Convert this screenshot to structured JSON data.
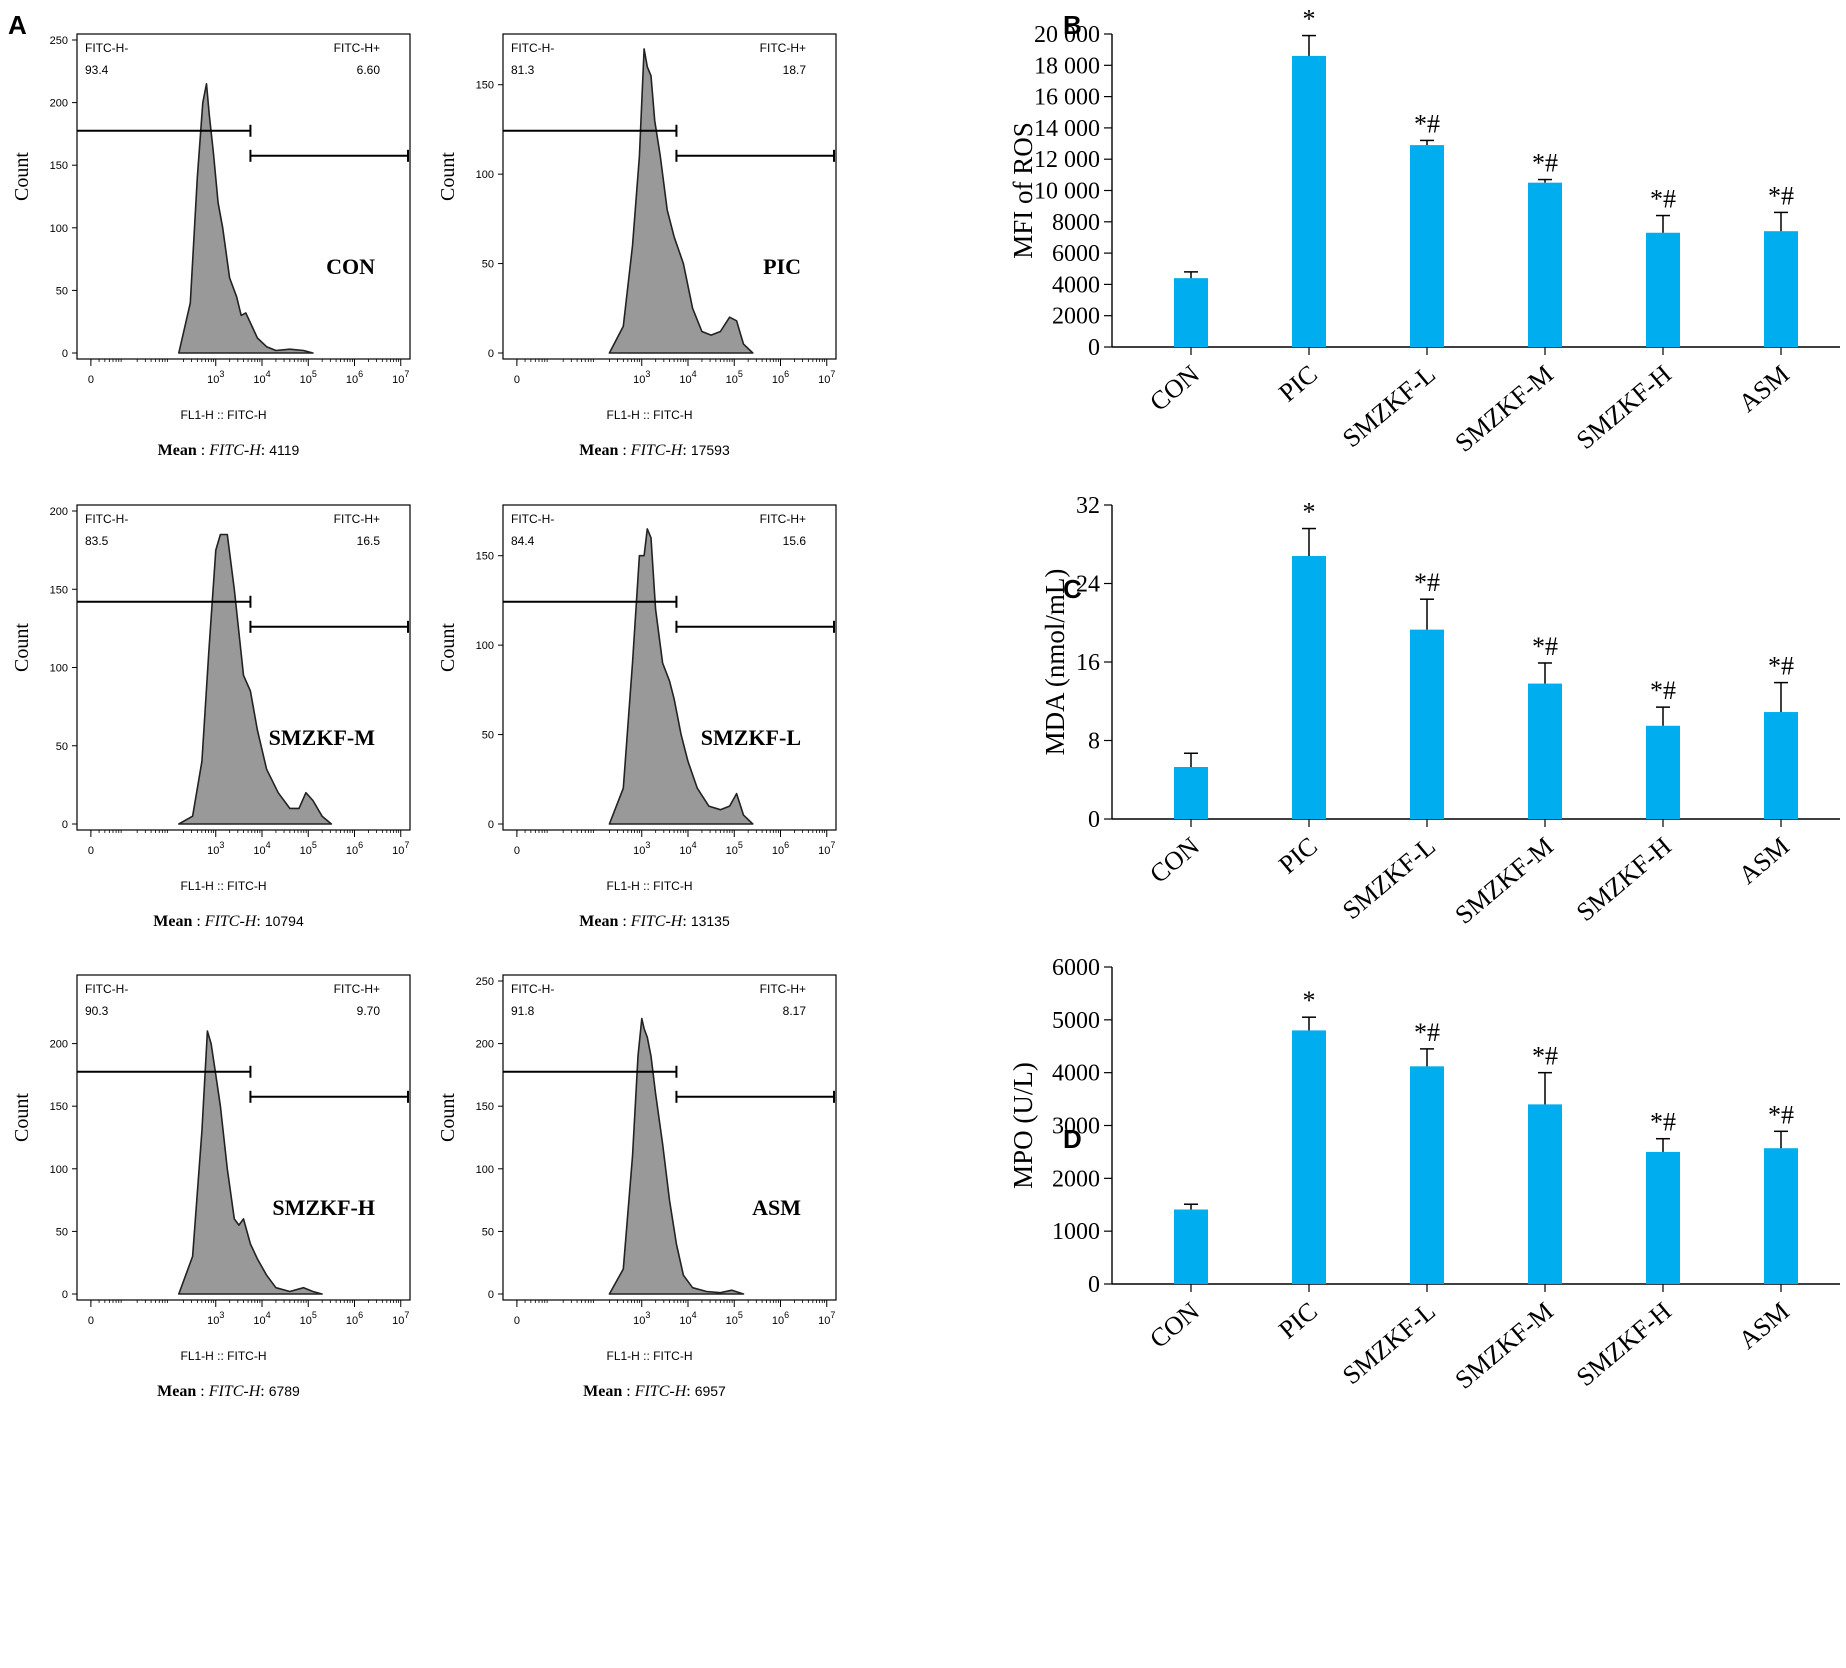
{
  "panel_letters": [
    "A",
    "B",
    "C",
    "D"
  ],
  "accent": "#00aeef",
  "histogram_fill": "#999999",
  "chart_data": [
    {
      "type": "area",
      "panel": "A",
      "group": "CON",
      "xlabel": "FL1-H :: FITC-H",
      "ylabel": "Count",
      "ylim": [
        0,
        250
      ],
      "yticks": [
        "0",
        "50",
        "100",
        "150",
        "200",
        "250"
      ],
      "xticks": [
        "0",
        "10^3",
        "10^4",
        "10^5",
        "10^6",
        "10^7"
      ],
      "gate_left_label": "FITC-H-",
      "gate_left_value": "93.4",
      "gate_right_label": "FITC-H+",
      "gate_right_value": "6.60",
      "mean_label": "Mean",
      "mean_param": "FITC-H",
      "mean_value": "4119",
      "x": [
        2.2,
        2.45,
        2.6,
        2.72,
        2.8,
        2.86,
        2.95,
        3.05,
        3.15,
        3.3,
        3.45,
        3.55,
        3.65,
        3.8,
        3.9,
        4.1,
        4.3,
        4.6,
        4.9,
        5.1
      ],
      "y": [
        0,
        40,
        140,
        200,
        215,
        190,
        160,
        120,
        100,
        60,
        45,
        30,
        32,
        20,
        12,
        5,
        2,
        3,
        2,
        0
      ]
    },
    {
      "type": "area",
      "panel": "A",
      "group": "PIC",
      "xlabel": "FL1-H :: FITC-H",
      "ylabel": "Count",
      "ylim": [
        0,
        175
      ],
      "yticks": [
        "0",
        "50",
        "100",
        "150"
      ],
      "xticks": [
        "0",
        "10^3",
        "10^4",
        "10^5",
        "10^6",
        "10^7"
      ],
      "gate_left_label": "FITC-H-",
      "gate_left_value": "81.3",
      "gate_right_label": "FITC-H+",
      "gate_right_value": "18.7",
      "mean_label": "Mean",
      "mean_param": "FITC-H",
      "mean_value": "17593",
      "x": [
        2.3,
        2.6,
        2.8,
        2.95,
        3.05,
        3.12,
        3.2,
        3.28,
        3.4,
        3.55,
        3.7,
        3.9,
        4.1,
        4.3,
        4.5,
        4.7,
        4.9,
        5.05,
        5.2,
        5.4
      ],
      "y": [
        0,
        15,
        60,
        110,
        170,
        160,
        155,
        130,
        110,
        80,
        65,
        50,
        25,
        12,
        10,
        12,
        20,
        18,
        5,
        0
      ]
    },
    {
      "type": "area",
      "panel": "A",
      "group": "SMZKF-M",
      "xlabel": "FL1-H :: FITC-H",
      "ylabel": "Count",
      "ylim": [
        0,
        200
      ],
      "yticks": [
        "0",
        "50",
        "100",
        "150",
        "200"
      ],
      "xticks": [
        "0",
        "10^3",
        "10^4",
        "10^5",
        "10^6",
        "10^7"
      ],
      "gate_left_label": "FITC-H-",
      "gate_left_value": "83.5",
      "gate_right_label": "FITC-H+",
      "gate_right_value": "16.5",
      "mean_label": "Mean",
      "mean_param": "FITC-H",
      "mean_value": "10794",
      "x": [
        2.2,
        2.5,
        2.7,
        2.85,
        3.0,
        3.1,
        3.25,
        3.4,
        3.6,
        3.75,
        3.9,
        4.1,
        4.35,
        4.6,
        4.8,
        4.95,
        5.1,
        5.3,
        5.5
      ],
      "y": [
        0,
        5,
        40,
        110,
        175,
        185,
        185,
        150,
        95,
        85,
        60,
        35,
        20,
        10,
        10,
        20,
        15,
        5,
        0
      ]
    },
    {
      "type": "area",
      "panel": "A",
      "group": "SMZKF-L",
      "xlabel": "FL1-H :: FITC-H",
      "ylabel": "Count",
      "ylim": [
        0,
        175
      ],
      "yticks": [
        "0",
        "50",
        "100",
        "150"
      ],
      "xticks": [
        "0",
        "10^3",
        "10^4",
        "10^5",
        "10^6",
        "10^7"
      ],
      "gate_left_label": "FITC-H-",
      "gate_left_value": "84.4",
      "gate_right_label": "FITC-H+",
      "gate_right_value": "15.6",
      "mean_label": "Mean",
      "mean_param": "FITC-H",
      "mean_value": "13135",
      "x": [
        2.3,
        2.6,
        2.8,
        2.95,
        3.05,
        3.12,
        3.2,
        3.3,
        3.45,
        3.6,
        3.7,
        3.85,
        4.0,
        4.2,
        4.45,
        4.7,
        4.9,
        5.05,
        5.2,
        5.4
      ],
      "y": [
        0,
        20,
        90,
        150,
        150,
        165,
        160,
        120,
        90,
        80,
        70,
        50,
        35,
        20,
        10,
        8,
        10,
        17,
        5,
        0
      ]
    },
    {
      "type": "area",
      "panel": "A",
      "group": "SMZKF-H",
      "xlabel": "FL1-H :: FITC-H",
      "ylabel": "Count",
      "ylim": [
        0,
        250
      ],
      "yticks": [
        "0",
        "50",
        "100",
        "150",
        "200"
      ],
      "xticks": [
        "0",
        "10^3",
        "10^4",
        "10^5",
        "10^6",
        "10^7"
      ],
      "gate_left_label": "FITC-H-",
      "gate_left_value": "90.3",
      "gate_right_label": "FITC-H+",
      "gate_right_value": "9.70",
      "mean_label": "Mean",
      "mean_param": "FITC-H",
      "mean_value": "6789",
      "x": [
        2.2,
        2.5,
        2.7,
        2.82,
        2.9,
        3.0,
        3.1,
        3.25,
        3.4,
        3.5,
        3.6,
        3.75,
        3.9,
        4.1,
        4.3,
        4.6,
        4.9,
        5.1,
        5.3
      ],
      "y": [
        0,
        30,
        130,
        210,
        200,
        175,
        150,
        100,
        60,
        55,
        60,
        40,
        28,
        15,
        5,
        2,
        5,
        2,
        0
      ]
    },
    {
      "type": "area",
      "panel": "A",
      "group": "ASM",
      "xlabel": "FL1-H :: FITC-H",
      "ylabel": "Count",
      "ylim": [
        0,
        250
      ],
      "yticks": [
        "0",
        "50",
        "100",
        "150",
        "200",
        "250"
      ],
      "xticks": [
        "0",
        "10^3",
        "10^4",
        "10^5",
        "10^6",
        "10^7"
      ],
      "gate_left_label": "FITC-H-",
      "gate_left_value": "91.8",
      "gate_right_label": "FITC-H+",
      "gate_right_value": "8.17",
      "mean_label": "Mean",
      "mean_param": "FITC-H",
      "mean_value": "6957",
      "x": [
        2.3,
        2.6,
        2.8,
        2.92,
        3.0,
        3.05,
        3.12,
        3.2,
        3.3,
        3.45,
        3.6,
        3.75,
        3.9,
        4.1,
        4.4,
        4.7,
        4.95,
        5.2
      ],
      "y": [
        0,
        20,
        110,
        190,
        220,
        212,
        205,
        190,
        160,
        120,
        75,
        40,
        15,
        5,
        2,
        1,
        3,
        0
      ]
    },
    {
      "type": "bar",
      "panel": "B",
      "categories": [
        "CON",
        "PIC",
        "SMZKF-L",
        "SMZKF-M",
        "SMZKF-H",
        "ASM"
      ],
      "values": [
        4400,
        18600,
        12900,
        10500,
        7300,
        7400
      ],
      "errors": [
        400,
        1300,
        300,
        200,
        1100,
        1200
      ],
      "annotations": [
        "",
        "*",
        "*#",
        "*#",
        "*#",
        "*#"
      ],
      "ylabel": "MFI of ROS",
      "ylim": [
        0,
        20000
      ],
      "yticks": [
        "0",
        "2000",
        "4000",
        "6000",
        "8000",
        "10 000",
        "12 000",
        "14 000",
        "16 000",
        "18 000",
        "20 000"
      ]
    },
    {
      "type": "bar",
      "panel": "C",
      "categories": [
        "CON",
        "PIC",
        "SMZKF-L",
        "SMZKF-M",
        "SMZKF-H",
        "ASM"
      ],
      "values": [
        5.3,
        26.8,
        19.3,
        13.8,
        9.5,
        10.9
      ],
      "errors": [
        1.4,
        2.8,
        3.1,
        2.1,
        1.9,
        3.0
      ],
      "annotations": [
        "",
        "*",
        "*#",
        "*#",
        "*#",
        "*#"
      ],
      "ylabel": "MDA (nmol/mL)",
      "ylim": [
        0,
        32
      ],
      "yticks": [
        "0",
        "8",
        "16",
        "24",
        "32"
      ]
    },
    {
      "type": "bar",
      "panel": "D",
      "categories": [
        "CON",
        "PIC",
        "SMZKF-L",
        "SMZKF-M",
        "SMZKF-H",
        "ASM"
      ],
      "values": [
        1410,
        4800,
        4120,
        3400,
        2500,
        2570
      ],
      "errors": [
        100,
        250,
        330,
        600,
        250,
        320
      ],
      "annotations": [
        "",
        "*",
        "*#",
        "*#",
        "*#",
        "*#"
      ],
      "ylabel": "MPO (U/L)",
      "ylim": [
        0,
        6000
      ],
      "yticks": [
        "0",
        "1000",
        "2000",
        "3000",
        "4000",
        "5000",
        "6000"
      ]
    }
  ]
}
